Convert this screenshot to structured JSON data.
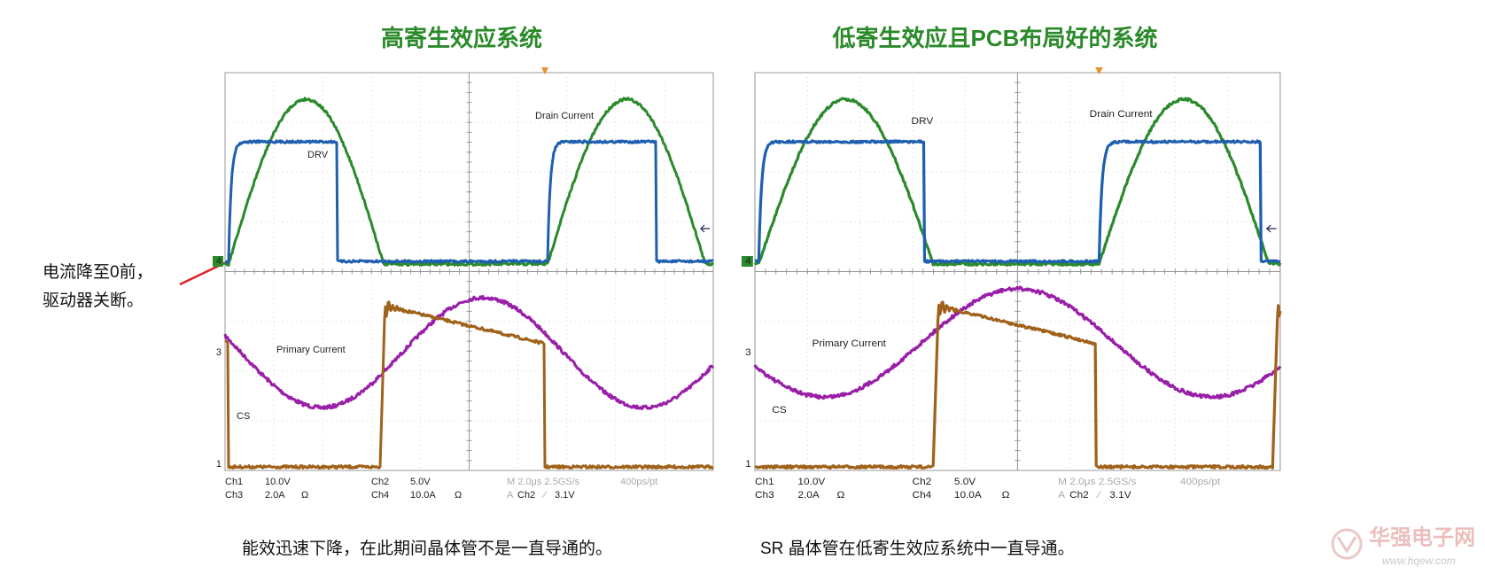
{
  "titles": [
    "高寄生效应系统",
    "低寄生效应且PCB布局好的系统"
  ],
  "scopes": [
    {
      "labels": {
        "drv": "DRV",
        "drain_current": "Drain Current",
        "primary_current": "Primary  Current",
        "cs": "CS"
      },
      "markers": [
        "4",
        "3",
        "1"
      ],
      "readout": [
        "Ch1",
        "10.0V",
        "Ch3",
        "2.0A",
        "Ω",
        "Ch2",
        "5.0V",
        "Ch4",
        "10.0A",
        "Ω",
        "M 2.0μs 2.5GS/s",
        "400ps/pt",
        "A",
        "Ch2",
        "∕",
        "3.1V"
      ]
    },
    {
      "labels": {
        "drv": "DRV",
        "drain_current": "Drain Current",
        "primary_current": "Primary Current",
        "cs": "CS"
      },
      "markers": [
        "4",
        "3",
        "1"
      ],
      "readout": [
        "Ch1",
        "10.0V",
        "Ch3",
        "2.0A",
        "Ω",
        "Ch2",
        "5.0V",
        "Ch4",
        "10.0A",
        "Ω",
        "M 2.0μs 2.5GS/s",
        "400ps/pt",
        "A",
        "Ch2",
        "∕",
        "3.1V"
      ]
    }
  ],
  "annotation": [
    "电流降至0前，",
    "驱动器关断。"
  ],
  "captions": [
    "能效迅速下降，在此期间晶体管不是一直导通的。",
    "SR 晶体管在低寄生效应系统中一直导通。"
  ],
  "watermark": {
    "name": "华强电子网",
    "url": "www.hqew.com"
  }
}
